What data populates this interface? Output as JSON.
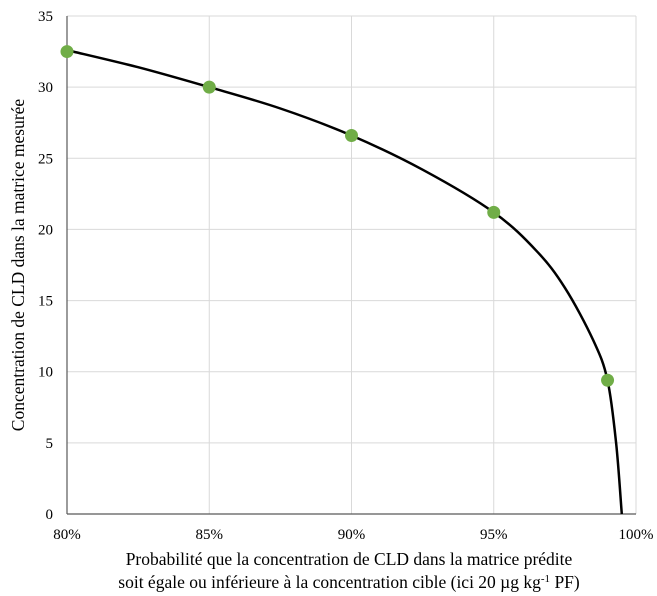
{
  "chart_data": {
    "type": "scatter",
    "title": "",
    "xlabel_line1": "Probabilité que la concentration de CLD dans la matrice prédite",
    "xlabel_line2_pre": "soit égale ou inférieure à la concentration cible (ici 20 µg kg",
    "xlabel_line2_sup": "-1",
    "xlabel_line2_post": " PF)",
    "ylabel": "Concentration de CLD dans la matrice mesurée",
    "xlim": [
      0.8,
      1.0
    ],
    "ylim": [
      0,
      35
    ],
    "grid": true,
    "x_ticks": [
      {
        "value": 0.8,
        "label": "80%"
      },
      {
        "value": 0.85,
        "label": "85%"
      },
      {
        "value": 0.9,
        "label": "90%"
      },
      {
        "value": 0.95,
        "label": "95%"
      },
      {
        "value": 1.0,
        "label": "100%"
      }
    ],
    "y_ticks": [
      {
        "value": 0,
        "label": "0"
      },
      {
        "value": 5,
        "label": "5"
      },
      {
        "value": 10,
        "label": "10"
      },
      {
        "value": 15,
        "label": "15"
      },
      {
        "value": 20,
        "label": "20"
      },
      {
        "value": 25,
        "label": "25"
      },
      {
        "value": 30,
        "label": "30"
      },
      {
        "value": 35,
        "label": "35"
      }
    ],
    "series": [
      {
        "kind": "points",
        "color": "#70ad47",
        "x": [
          0.8,
          0.85,
          0.9,
          0.95,
          0.99
        ],
        "y": [
          32.5,
          30.0,
          26.6,
          21.2,
          9.4
        ]
      },
      {
        "kind": "curve",
        "color": "#000000",
        "x": [
          0.8,
          0.825,
          0.85,
          0.875,
          0.9,
          0.925,
          0.95,
          0.965,
          0.975,
          0.985,
          0.99,
          0.993,
          0.995
        ],
        "y": [
          32.6,
          31.4,
          30.0,
          28.5,
          26.6,
          24.2,
          21.2,
          18.5,
          15.9,
          12.2,
          9.4,
          5.0,
          0.0
        ]
      }
    ]
  }
}
